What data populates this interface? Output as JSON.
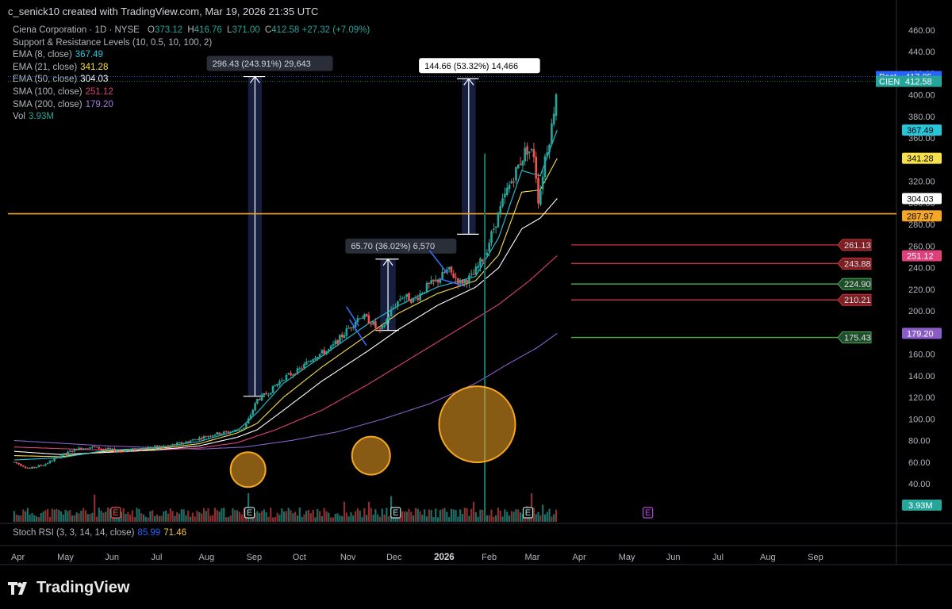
{
  "header": {
    "text": "c_senick10 created with TradingView.com, Mar 19, 2026 21:35 UTC"
  },
  "legend": {
    "symbol": "Ciena Corporation · 1D · NYSE",
    "open_label": "O",
    "open": "373.12",
    "high_label": "H",
    "high": "416.76",
    "low_label": "L",
    "low": "371.00",
    "close_label": "C",
    "close": "412.58",
    "change": "+27.32 (+7.09%)",
    "sr": "Support & Resistance Levels (10, 0.5, 10, 100, 2)",
    "ema8_label": "EMA (8, close)",
    "ema8": "367.49",
    "ema21_label": "EMA (21, close)",
    "ema21": "341.28",
    "ema50_label": "EMA (50, close)",
    "ema50": "304.03",
    "sma100_label": "SMA (100, close)",
    "sma100": "251.12",
    "sma200_label": "SMA (200, close)",
    "sma200": "179.20",
    "vol_label": "Vol",
    "vol": "3.93M"
  },
  "stoch": {
    "label": "Stoch RSI (3, 3, 14, 14, close)",
    "k": "85.99",
    "d": "71.46"
  },
  "brand": {
    "name": "TradingView"
  },
  "colors": {
    "up": "#26a69a",
    "down": "#ef5350",
    "ema8": "#26c6da",
    "ema21": "#f7e04a",
    "ema50": "#ffffff",
    "sma100": "#e0407a",
    "sma200": "#8a5cc7",
    "resistance": "#f5a623",
    "level_red": "#d0353c",
    "level_green": "#4caf50",
    "measure": "#5b7bd5"
  },
  "chart_data": {
    "type": "candlestick",
    "y_ticks": [
      40,
      60,
      80,
      100,
      120,
      140,
      160,
      180,
      200,
      220,
      240,
      260,
      280,
      300,
      320,
      340,
      360,
      380,
      400,
      420,
      440,
      460
    ],
    "y_tick_labels": [
      "40.00",
      "60.00",
      "80.00",
      "100.00",
      "120.00",
      "140.00",
      "160.00",
      "180.00",
      "200.00",
      "220.00",
      "240.00",
      "260.00",
      "280.00",
      "300.00",
      "320.00",
      "340.00",
      "360.00",
      "380.00",
      "400.00",
      "420.00",
      "440.00",
      "460.00"
    ],
    "x_labels": [
      {
        "label": "Apr",
        "t": 0
      },
      {
        "label": "May",
        "t": 30
      },
      {
        "label": "Jun",
        "t": 61
      },
      {
        "label": "Jul",
        "t": 91
      },
      {
        "label": "Aug",
        "t": 122
      },
      {
        "label": "Sep",
        "t": 153
      },
      {
        "label": "Oct",
        "t": 183
      },
      {
        "label": "Nov",
        "t": 214
      },
      {
        "label": "Dec",
        "t": 244
      },
      {
        "label": "2026",
        "t": 275,
        "bold": true
      },
      {
        "label": "Feb",
        "t": 306
      },
      {
        "label": "Mar",
        "t": 334
      },
      {
        "label": "Apr",
        "t": 365
      },
      {
        "label": "May",
        "t": 395
      },
      {
        "label": "Jun",
        "t": 426
      },
      {
        "label": "Jul",
        "t": 456
      },
      {
        "label": "Aug",
        "t": 487
      },
      {
        "label": "Sep",
        "t": 518
      }
    ],
    "price_path": [
      [
        0,
        60
      ],
      [
        10,
        54
      ],
      [
        20,
        58
      ],
      [
        30,
        66
      ],
      [
        40,
        72
      ],
      [
        50,
        74
      ],
      [
        60,
        72
      ],
      [
        70,
        70
      ],
      [
        80,
        72
      ],
      [
        90,
        74
      ],
      [
        100,
        75
      ],
      [
        110,
        78
      ],
      [
        120,
        82
      ],
      [
        130,
        86
      ],
      [
        140,
        88
      ],
      [
        150,
        92
      ],
      [
        158,
        118
      ],
      [
        165,
        124
      ],
      [
        175,
        138
      ],
      [
        185,
        145
      ],
      [
        195,
        158
      ],
      [
        205,
        164
      ],
      [
        215,
        180
      ],
      [
        225,
        196
      ],
      [
        232,
        190
      ],
      [
        238,
        180
      ],
      [
        245,
        200
      ],
      [
        252,
        214
      ],
      [
        260,
        210
      ],
      [
        268,
        222
      ],
      [
        275,
        228
      ],
      [
        282,
        238
      ],
      [
        290,
        226
      ],
      [
        298,
        232
      ],
      [
        306,
        252
      ],
      [
        313,
        282
      ],
      [
        320,
        310
      ],
      [
        327,
        332
      ],
      [
        333,
        350
      ],
      [
        338,
        345
      ],
      [
        341,
        300
      ],
      [
        345,
        342
      ],
      [
        349,
        366
      ],
      [
        353,
        410
      ]
    ],
    "ema8_path": [
      [
        0,
        62
      ],
      [
        30,
        64
      ],
      [
        60,
        71
      ],
      [
        90,
        73
      ],
      [
        120,
        79
      ],
      [
        145,
        89
      ],
      [
        158,
        106
      ],
      [
        175,
        133
      ],
      [
        200,
        158
      ],
      [
        230,
        188
      ],
      [
        250,
        205
      ],
      [
        275,
        222
      ],
      [
        300,
        232
      ],
      [
        315,
        268
      ],
      [
        330,
        330
      ],
      [
        342,
        325
      ],
      [
        353,
        367.49
      ]
    ],
    "ema21_path": [
      [
        0,
        66
      ],
      [
        30,
        65
      ],
      [
        60,
        70
      ],
      [
        90,
        72
      ],
      [
        120,
        77
      ],
      [
        145,
        87
      ],
      [
        158,
        96
      ],
      [
        175,
        120
      ],
      [
        200,
        148
      ],
      [
        230,
        178
      ],
      [
        250,
        198
      ],
      [
        275,
        216
      ],
      [
        300,
        228
      ],
      [
        315,
        252
      ],
      [
        330,
        310
      ],
      [
        342,
        312
      ],
      [
        353,
        341.28
      ]
    ],
    "ema50_path": [
      [
        0,
        70
      ],
      [
        30,
        67
      ],
      [
        60,
        69
      ],
      [
        90,
        71
      ],
      [
        120,
        75
      ],
      [
        145,
        83
      ],
      [
        158,
        90
      ],
      [
        175,
        108
      ],
      [
        200,
        135
      ],
      [
        230,
        163
      ],
      [
        250,
        183
      ],
      [
        275,
        205
      ],
      [
        300,
        222
      ],
      [
        315,
        240
      ],
      [
        330,
        276
      ],
      [
        342,
        286
      ],
      [
        353,
        304.03
      ]
    ],
    "sma100_path": [
      [
        0,
        74
      ],
      [
        60,
        71
      ],
      [
        90,
        71
      ],
      [
        120,
        73
      ],
      [
        145,
        78
      ],
      [
        170,
        90
      ],
      [
        200,
        108
      ],
      [
        230,
        132
      ],
      [
        260,
        158
      ],
      [
        290,
        184
      ],
      [
        315,
        206
      ],
      [
        335,
        228
      ],
      [
        353,
        251.12
      ]
    ],
    "sma200_path": [
      [
        0,
        80
      ],
      [
        60,
        75
      ],
      [
        120,
        72
      ],
      [
        150,
        74
      ],
      [
        180,
        80
      ],
      [
        210,
        88
      ],
      [
        240,
        100
      ],
      [
        270,
        114
      ],
      [
        300,
        133
      ],
      [
        320,
        150
      ],
      [
        340,
        166
      ],
      [
        353,
        179.2
      ]
    ],
    "resistance_line": 290,
    "sr_levels": [
      {
        "value": "261.13",
        "price": 261.13,
        "color": "red"
      },
      {
        "value": "243.88",
        "price": 243.88,
        "color": "red"
      },
      {
        "value": "224.90",
        "price": 224.9,
        "color": "green"
      },
      {
        "value": "210.21",
        "price": 210.21,
        "color": "red"
      },
      {
        "value": "175.43",
        "price": 175.43,
        "color": "green"
      }
    ],
    "right_badges": [
      {
        "label": "Post",
        "value": "417.05",
        "price": 417.05,
        "color": "#2962ff",
        "text": "#ffffff"
      },
      {
        "label": "CIEN",
        "value": "412.58",
        "price": 412.58,
        "color": "#26a69a",
        "text": "#ffffff"
      },
      {
        "value": "367.49",
        "price": 367.49,
        "color": "#26c6da",
        "text": "#000000"
      },
      {
        "value": "341.28",
        "price": 341.28,
        "color": "#f7e04a",
        "text": "#000000"
      },
      {
        "value": "304.03",
        "price": 304.03,
        "color": "#ffffff",
        "text": "#000000"
      },
      {
        "value": "287.97",
        "price": 287.97,
        "color": "#f5a623",
        "text": "#000000"
      },
      {
        "value": "251.12",
        "price": 251.12,
        "color": "#e0407a",
        "text": "#ffffff"
      },
      {
        "value": "179.20",
        "price": 179.2,
        "color": "#8a5cc7",
        "text": "#ffffff"
      }
    ],
    "vol_badge": "3.93M",
    "measures": [
      {
        "label": "296.43 (243.91%) 29,643",
        "t0": 152,
        "t1": 161,
        "p0": 121,
        "p1": 417
      },
      {
        "label": "65.70 (36.02%) 6,570",
        "t0": 238,
        "t1": 248,
        "p0": 182,
        "p1": 248
      },
      {
        "label": "144.66 (53.32%) 14,466",
        "t0": 291,
        "t1": 300,
        "p0": 271,
        "p1": 415
      }
    ],
    "volume_spikes": [
      [
        52,
        0.95
      ],
      [
        152,
        1.0
      ],
      [
        214,
        0.7
      ],
      [
        230,
        0.7
      ],
      [
        245,
        0.9
      ],
      [
        256,
        0.45
      ],
      [
        299,
        0.7
      ],
      [
        306,
        4.3
      ],
      [
        320,
        0.35
      ],
      [
        333,
        0.55
      ],
      [
        336,
        1.0
      ],
      [
        343,
        0.6
      ]
    ],
    "volume_circles": [
      {
        "t": 152,
        "price": 53,
        "r": 22
      },
      {
        "t": 232,
        "price": 66,
        "r": 24
      },
      {
        "t": 301,
        "price": 95,
        "r": 48
      }
    ],
    "earnings_markers": [
      {
        "label": "E",
        "t": 66,
        "kind": "red"
      },
      {
        "label": "E",
        "t": 153,
        "kind": "green"
      },
      {
        "label": "E",
        "t": 248,
        "kind": "green"
      },
      {
        "label": "E",
        "t": 334,
        "kind": "green"
      },
      {
        "label": "E",
        "t": 412,
        "kind": "purple"
      }
    ],
    "down_channels": [
      [
        [
          216,
          204
        ],
        [
          224,
          186
        ]
      ],
      [
        [
          218,
          192
        ],
        [
          229,
          168
        ]
      ],
      [
        [
          270,
          256
        ],
        [
          282,
          234
        ]
      ],
      [
        [
          276,
          230
        ],
        [
          293,
          223
        ]
      ]
    ]
  }
}
